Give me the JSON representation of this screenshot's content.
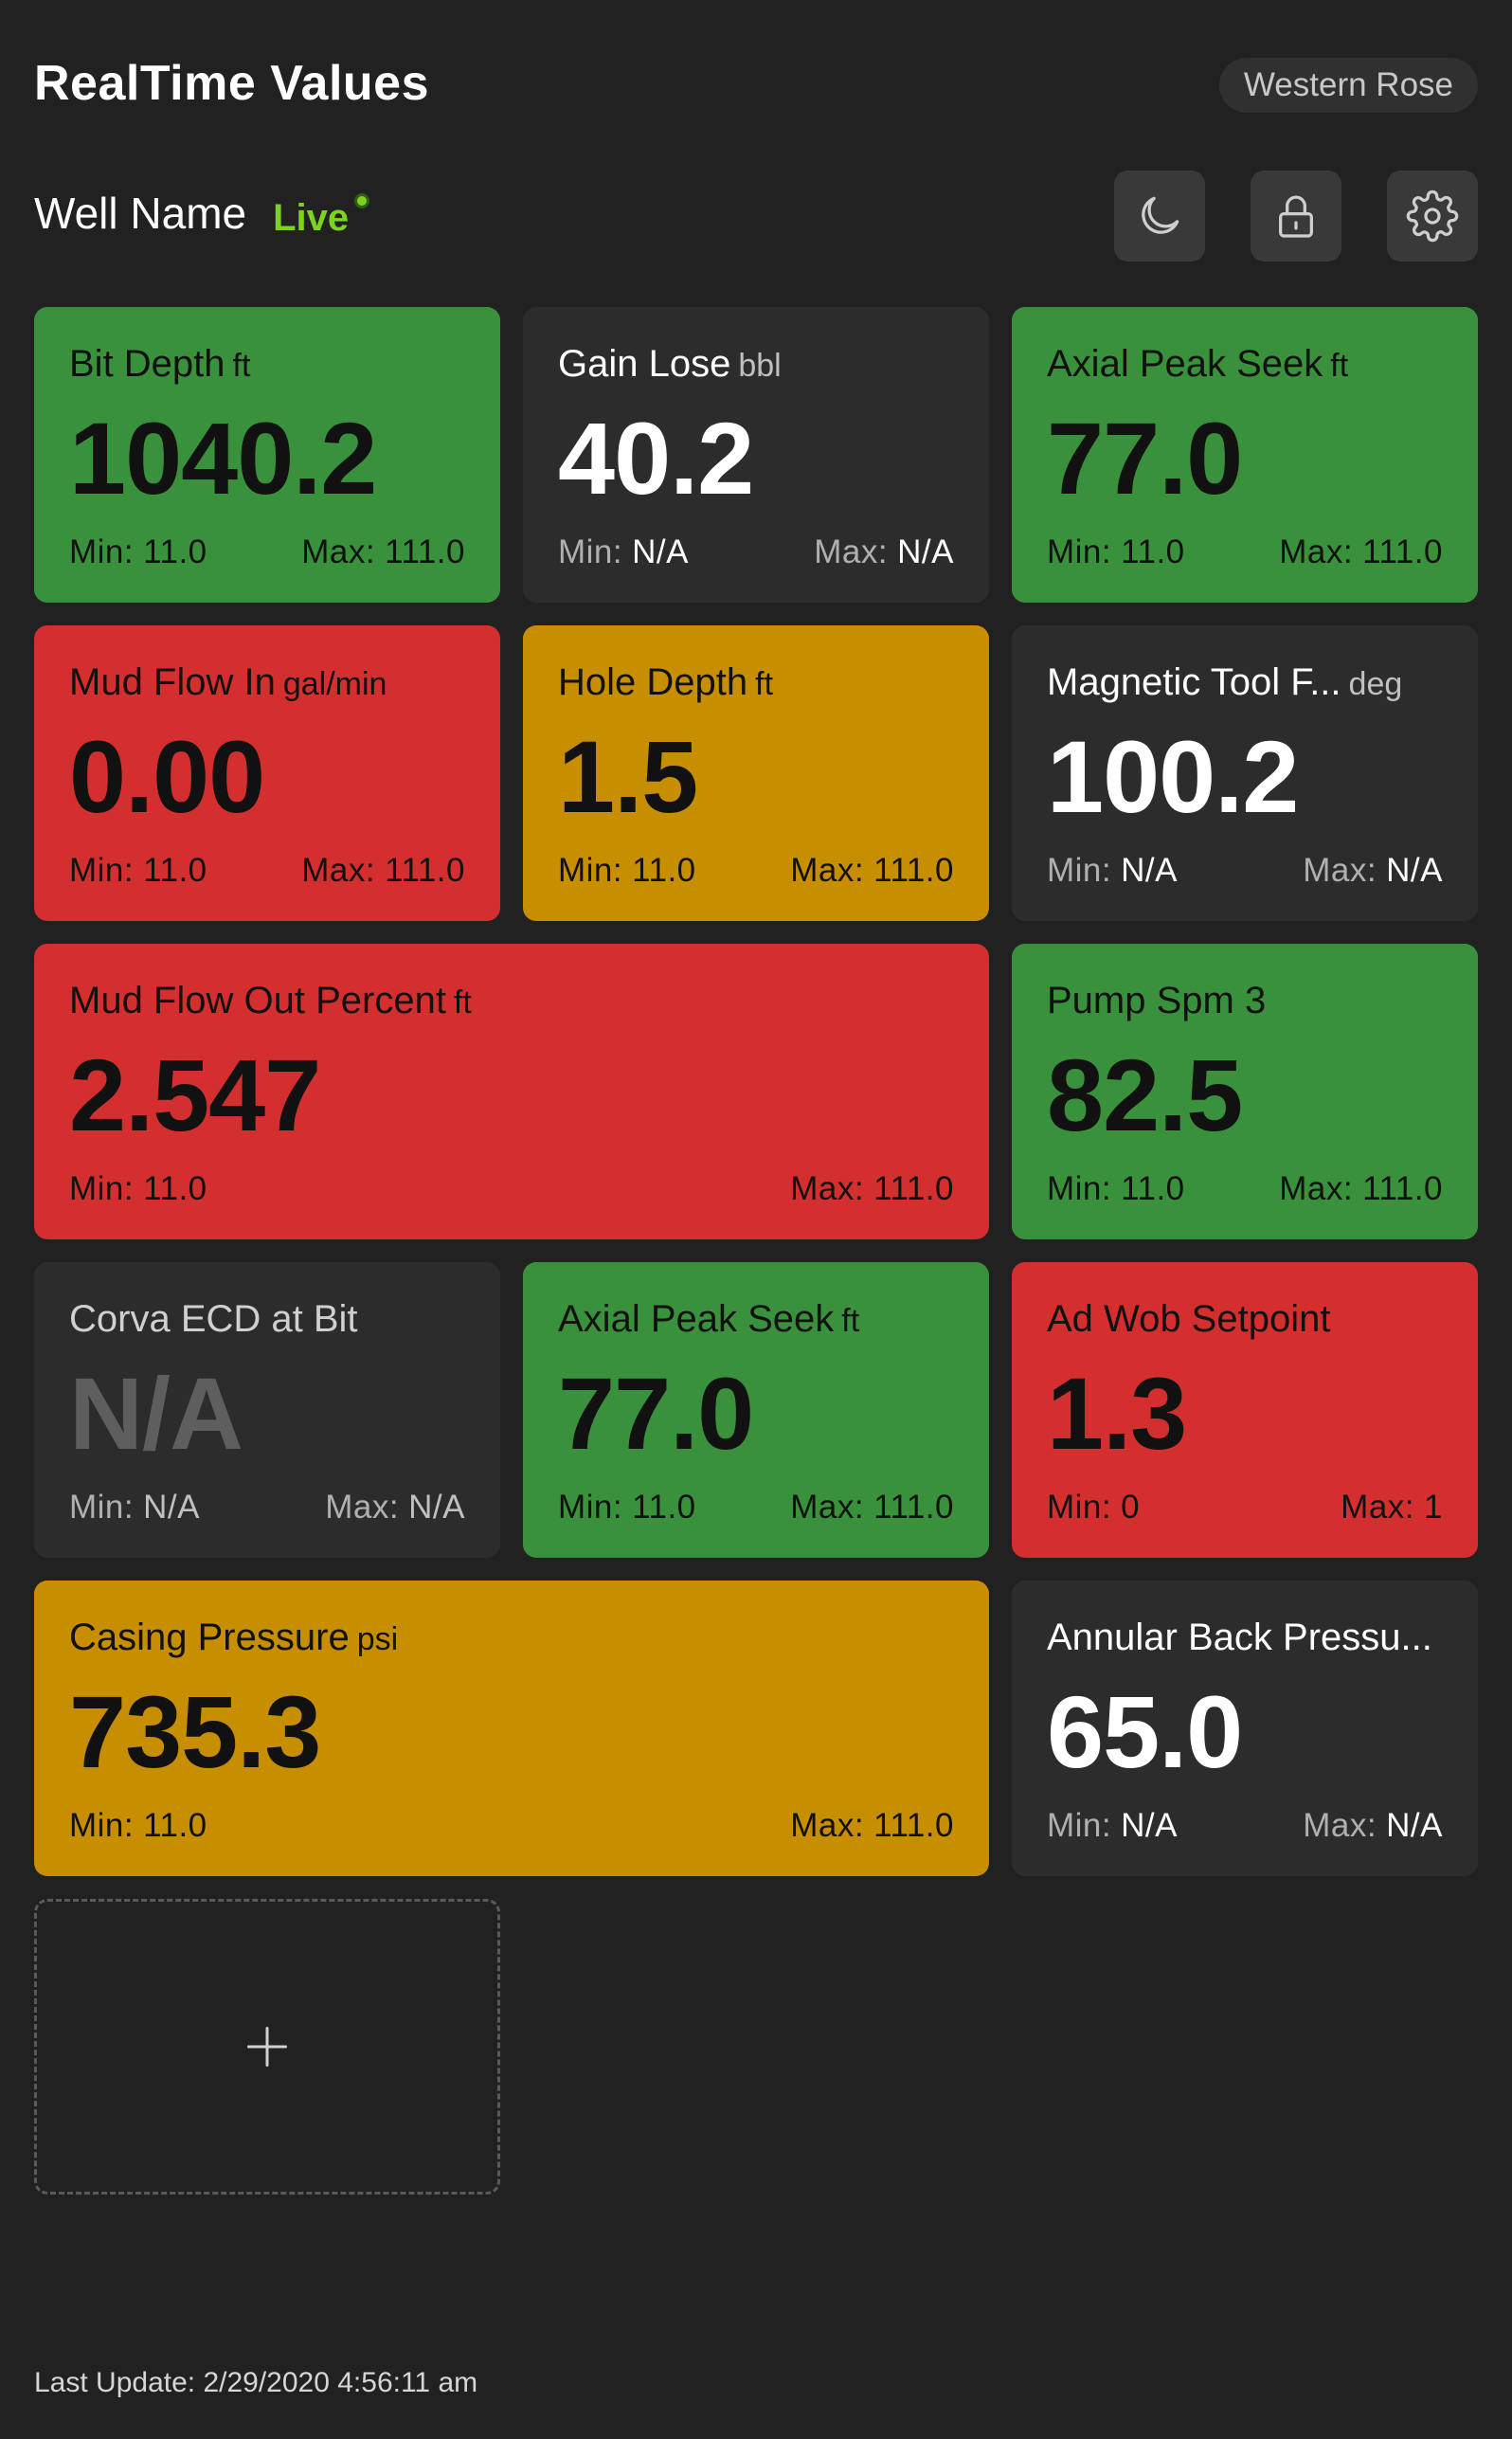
{
  "header": {
    "title": "RealTime Values",
    "rig": "Western Rose",
    "well_name": "Well Name",
    "live": "Live"
  },
  "toolbar": {
    "icons": [
      "moon-icon",
      "lock-icon",
      "gear-icon"
    ]
  },
  "colors": {
    "green": "#3a913c",
    "red": "#d32f2f",
    "yellow": "#c78e00",
    "dark": "#2c2c2c",
    "live": "#7ed321"
  },
  "cards": [
    {
      "label": "Bit Depth",
      "unit": "ft",
      "value": "1040.2",
      "min_label": "Min:",
      "min": "11.0",
      "max_label": "Max:",
      "max": "111.0",
      "status": "green"
    },
    {
      "label": "Gain Lose",
      "unit": "bbl",
      "value": "40.2",
      "min_label": "Min:",
      "min": "N/A",
      "max_label": "Max:",
      "max": "N/A",
      "status": "dark"
    },
    {
      "label": "Axial Peak Seek",
      "unit": "ft",
      "value": "77.0",
      "min_label": "Min:",
      "min": "11.0",
      "max_label": "Max:",
      "max": "111.0",
      "status": "green"
    },
    {
      "label": "Mud Flow In",
      "unit": "gal/min",
      "value": "0.00",
      "min_label": "Min:",
      "min": "11.0",
      "max_label": "Max:",
      "max": "111.0",
      "status": "red"
    },
    {
      "label": "Hole Depth",
      "unit": "ft",
      "value": "1.5",
      "min_label": "Min:",
      "min": "11.0",
      "max_label": "Max:",
      "max": "111.0",
      "status": "yellow"
    },
    {
      "label": "Magnetic Tool F...",
      "unit": "deg",
      "value": "100.2",
      "min_label": "Min:",
      "min": "N/A",
      "max_label": "Max:",
      "max": "N/A",
      "status": "dark"
    },
    {
      "label": "Mud Flow Out Percent",
      "unit": "ft",
      "value": "2.547",
      "min_label": "Min:",
      "min": "11.0",
      "max_label": "Max:",
      "max": "111.0",
      "status": "red"
    },
    {
      "label": "Pump Spm 3",
      "unit": "",
      "value": "82.5",
      "min_label": "Min:",
      "min": "11.0",
      "max_label": "Max:",
      "max": "111.0",
      "status": "green"
    },
    {
      "label": "Corva ECD at Bit",
      "unit": "",
      "value": "N/A",
      "min_label": "Min:",
      "min": "N/A",
      "max_label": "Max:",
      "max": "N/A",
      "status": "dark-na"
    },
    {
      "label": "Axial Peak Seek",
      "unit": "ft",
      "value": "77.0",
      "min_label": "Min:",
      "min": "11.0",
      "max_label": "Max:",
      "max": "111.0",
      "status": "green"
    },
    {
      "label": "Ad Wob Setpoint",
      "unit": "",
      "value": "1.3",
      "min_label": "Min:",
      "min": "0",
      "max_label": "Max:",
      "max": "1",
      "status": "red"
    },
    {
      "label": "Casing Pressure",
      "unit": "psi",
      "value": "735.3",
      "min_label": "Min:",
      "min": "11.0",
      "max_label": "Max:",
      "max": "111.0",
      "status": "yellow"
    },
    {
      "label": "Annular Back Pressu...",
      "unit": "",
      "value": "65.0",
      "min_label": "Min:",
      "min": "N/A",
      "max_label": "Max:",
      "max": "N/A",
      "status": "dark"
    }
  ],
  "add_tile": {
    "icon": "plus-icon"
  },
  "footer": {
    "last_update": "Last Update: 2/29/2020 4:56:11 am"
  }
}
